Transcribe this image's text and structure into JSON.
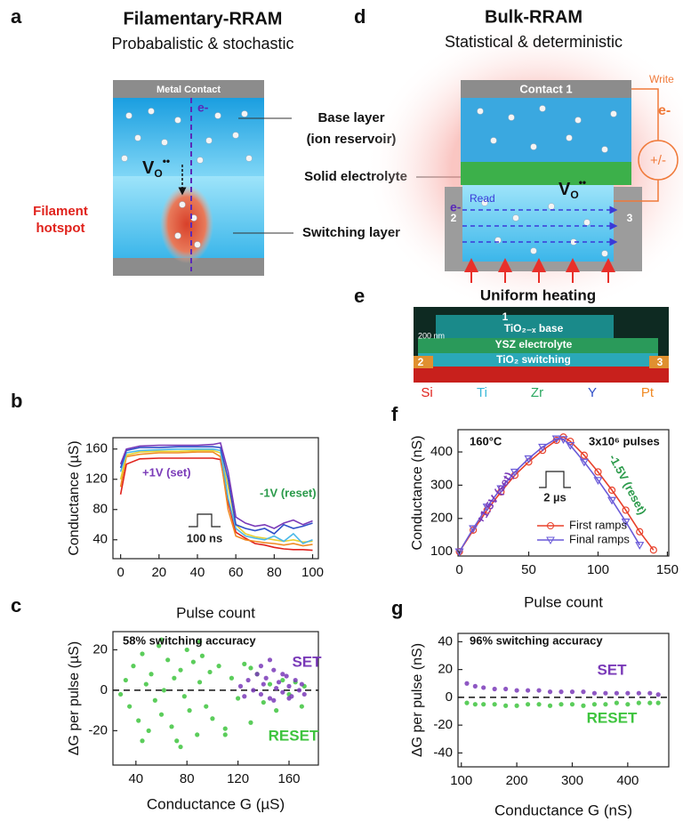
{
  "panel_a": {
    "letter": "a",
    "title": "Filamentary-RRAM",
    "subtitle": "Probabalistic & stochastic",
    "contact": "Metal Contact",
    "electron": "e-",
    "vo": {
      "base": "V",
      "sub": "O",
      "sup": "••"
    },
    "hotspot": [
      "Filament",
      "hotspot"
    ],
    "base_layer": [
      "Base layer",
      "(ion reservoir)"
    ],
    "electrolyte": "Solid electrolyte",
    "switching": "Switching layer"
  },
  "panel_d": {
    "letter": "d",
    "title": "Bulk-RRAM",
    "subtitle": "Statistical & deterministic",
    "contact": "Contact 1",
    "write": "Write",
    "write_electron": "e-",
    "source": "+/-",
    "read": "Read",
    "read_electron": "e-",
    "vo": {
      "base": "V",
      "sub": "O",
      "sup": "••"
    },
    "pad_left": "2",
    "pad_right": "3",
    "heating": "Uniform heating"
  },
  "panel_e": {
    "letter": "e",
    "top": "1",
    "base": "TiO₂₋ₓ base",
    "electrolyte": "YSZ electrolyte",
    "switching": "TiO₂ switching",
    "scale": "200 nm",
    "pad_left": "2",
    "pad_right": "3",
    "elements": [
      {
        "name": "Si",
        "color": "#e0221c"
      },
      {
        "name": "Ti",
        "color": "#3ab8d8"
      },
      {
        "name": "Zr",
        "color": "#2aa860"
      },
      {
        "name": "Y",
        "color": "#3050c8"
      },
      {
        "name": "Pt",
        "color": "#f08a24"
      }
    ]
  },
  "chart_data": [
    {
      "type": "line",
      "panel_label": "b",
      "xlabel": "Pulse count",
      "ylabel": "Conductance (µS)",
      "xlim": [
        -4,
        103
      ],
      "ylim": [
        15,
        175
      ],
      "xticks": [
        0,
        20,
        40,
        60,
        80,
        100
      ],
      "yticks": [
        40,
        80,
        120,
        160
      ],
      "annotations": [
        {
          "text": "+1V (set)",
          "color": "#7a3ab8"
        },
        {
          "text": "-1V (reset)",
          "color": "#2a9a4a"
        },
        {
          "text": "100 ns",
          "color": "#222222"
        }
      ],
      "x": [
        0,
        3,
        10,
        20,
        30,
        40,
        48,
        52,
        56,
        60,
        65,
        70,
        75,
        80,
        85,
        90,
        95,
        100
      ],
      "series": [
        {
          "color": "#e0221c",
          "values": [
            100,
            140,
            147,
            148,
            148,
            148,
            148,
            146,
            90,
            50,
            42,
            35,
            33,
            30,
            28,
            27,
            27,
            26
          ]
        },
        {
          "color": "#f08a24",
          "values": [
            110,
            150,
            153,
            155,
            155,
            156,
            156,
            150,
            80,
            45,
            40,
            38,
            36,
            35,
            33,
            35,
            32,
            34
          ]
        },
        {
          "color": "#e8d030",
          "values": [
            120,
            152,
            156,
            157,
            157,
            158,
            158,
            155,
            110,
            60,
            48,
            44,
            42,
            40,
            38,
            40,
            37,
            38
          ]
        },
        {
          "color": "#4ab8e8",
          "values": [
            130,
            155,
            158,
            159,
            160,
            160,
            160,
            158,
            95,
            55,
            45,
            42,
            40,
            45,
            38,
            48,
            35,
            40
          ]
        },
        {
          "color": "#3050c8",
          "values": [
            135,
            158,
            162,
            162,
            163,
            163,
            163,
            162,
            120,
            60,
            55,
            52,
            55,
            48,
            60,
            55,
            58,
            62
          ]
        },
        {
          "color": "#7a3ab8",
          "values": [
            140,
            160,
            164,
            165,
            165,
            165,
            166,
            168,
            130,
            70,
            62,
            58,
            60,
            55,
            62,
            66,
            60,
            65
          ]
        }
      ]
    },
    {
      "type": "scatter",
      "panel_label": "c",
      "xlabel": "Conductance G (µS)",
      "ylabel": "ΔG per pulse (µS)",
      "xlim": [
        22,
        183
      ],
      "ylim": [
        -37,
        29
      ],
      "xticks": [
        40,
        80,
        120,
        160
      ],
      "yticks": [
        -20,
        0,
        20
      ],
      "annotations": [
        {
          "text": "58% switching accuracy",
          "color": "#111111"
        }
      ],
      "series": [
        {
          "name": "RESET",
          "color": "#3ec43e",
          "x": [
            28,
            32,
            35,
            38,
            42,
            45,
            48,
            50,
            52,
            55,
            58,
            60,
            62,
            65,
            68,
            70,
            72,
            75,
            78,
            80,
            82,
            85,
            88,
            90,
            92,
            95,
            98,
            100,
            105,
            110,
            115,
            120,
            125,
            130,
            135,
            140,
            145,
            150,
            155,
            160,
            165,
            170,
            172,
            45,
            60,
            75,
            90,
            110,
            130
          ],
          "values": [
            -2,
            5,
            -8,
            12,
            -15,
            18,
            3,
            -20,
            8,
            -5,
            22,
            -12,
            0,
            15,
            -18,
            6,
            -25,
            10,
            -3,
            20,
            -10,
            14,
            -22,
            4,
            17,
            -8,
            9,
            -14,
            12,
            -19,
            6,
            -4,
            13,
            -16,
            8,
            -6,
            3,
            -10,
            5,
            -2,
            4,
            -8,
            2,
            -25,
            25,
            -28,
            24,
            -22,
            11
          ]
        },
        {
          "name": "SET",
          "color": "#7a3ab8",
          "x": [
            122,
            125,
            128,
            132,
            135,
            138,
            140,
            142,
            145,
            148,
            150,
            152,
            155,
            158,
            160,
            162,
            165,
            168,
            170,
            172,
            138,
            148,
            155,
            160,
            145
          ],
          "values": [
            2,
            -3,
            5,
            0,
            8,
            -2,
            3,
            6,
            -4,
            10,
            1,
            4,
            -1,
            7,
            2,
            -3,
            5,
            0,
            3,
            -2,
            12,
            -5,
            8,
            -4,
            15
          ]
        }
      ]
    },
    {
      "type": "line",
      "panel_label": "f",
      "xlabel": "Pulse count",
      "ylabel": "Conductance (nS)",
      "xlim": [
        -1,
        151
      ],
      "ylim": [
        87,
        467
      ],
      "xticks": [
        0,
        50,
        100,
        150
      ],
      "yticks": [
        100,
        200,
        300,
        400
      ],
      "legend": "lower right",
      "annotations": [
        {
          "text": "160°C",
          "color": "#111111"
        },
        {
          "text": "3x10⁶ pulses",
          "color": "#111111"
        },
        {
          "text": "+1.5V (set)",
          "color": "#7a3ab8"
        },
        {
          "text": "-1.5V (reset)",
          "color": "#2a9a4a"
        },
        {
          "text": "2 µs",
          "color": "#222222"
        }
      ],
      "x": [
        0,
        10,
        20,
        30,
        40,
        50,
        60,
        70,
        75,
        80,
        90,
        100,
        110,
        120,
        130,
        140
      ],
      "series": [
        {
          "name": "First ramps",
          "color": "#e8402a",
          "marker": "circle",
          "values": [
            100,
            165,
            225,
            280,
            330,
            370,
            405,
            435,
            445,
            432,
            390,
            340,
            285,
            225,
            160,
            105
          ]
        },
        {
          "name": "Final ramps",
          "color": "#6a5ad8",
          "marker": "triangle",
          "values": [
            100,
            170,
            235,
            290,
            340,
            380,
            415,
            440,
            438,
            420,
            370,
            315,
            255,
            190,
            120,
            null
          ]
        }
      ]
    },
    {
      "type": "scatter",
      "panel_label": "g",
      "xlabel": "Conductance G (nS)",
      "ylabel": "ΔG per pulse (nS)",
      "xlim": [
        94,
        474
      ],
      "ylim": [
        -50,
        46
      ],
      "xticks": [
        100,
        200,
        300,
        400
      ],
      "yticks": [
        -40,
        -20,
        0,
        20,
        40
      ],
      "annotations": [
        {
          "text": "96% switching accuracy",
          "color": "#111111"
        }
      ],
      "series": [
        {
          "name": "SET",
          "color": "#7a3ab8",
          "x": [
            110,
            125,
            140,
            160,
            180,
            200,
            220,
            240,
            260,
            280,
            300,
            320,
            340,
            360,
            380,
            400,
            420,
            440,
            455
          ],
          "values": [
            10,
            8,
            7,
            6,
            6,
            5,
            5,
            5,
            4,
            4,
            4,
            4,
            3,
            3,
            3,
            3,
            3,
            3,
            2
          ]
        },
        {
          "name": "RESET",
          "color": "#3ec43e",
          "x": [
            110,
            125,
            140,
            160,
            180,
            200,
            220,
            240,
            260,
            280,
            300,
            320,
            340,
            360,
            380,
            400,
            420,
            440,
            455
          ],
          "values": [
            -4,
            -5,
            -5,
            -5,
            -6,
            -6,
            -5,
            -5,
            -6,
            -5,
            -5,
            -6,
            -5,
            -5,
            -4,
            -5,
            -4,
            -4,
            -4
          ]
        }
      ]
    }
  ]
}
